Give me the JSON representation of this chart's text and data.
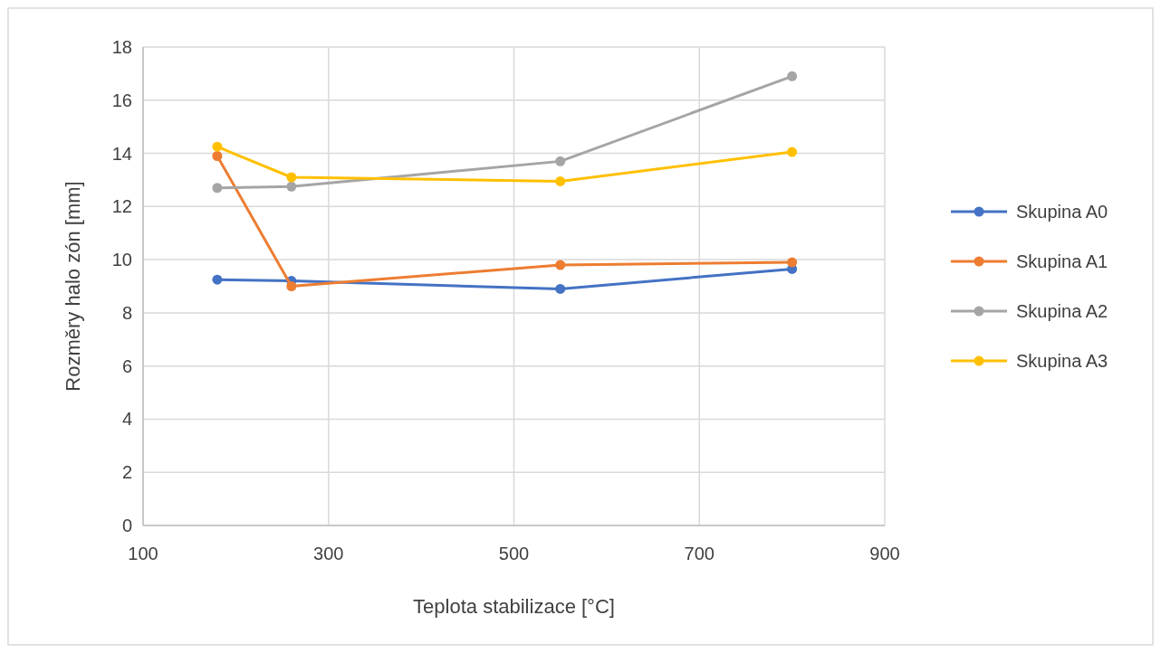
{
  "chart_data": {
    "type": "line",
    "xlabel": "Teplota stabilizace [°C]",
    "ylabel": "Rozměry halo zón [mm]",
    "x": [
      180,
      260,
      550,
      800
    ],
    "series": [
      {
        "name": "Skupina A0",
        "color": "#4472c4",
        "values": [
          9.25,
          9.2,
          8.9,
          9.65
        ]
      },
      {
        "name": "Skupina A1",
        "color": "#ed7d31",
        "values": [
          13.9,
          9.0,
          9.8,
          9.9
        ]
      },
      {
        "name": "Skupina A2",
        "color": "#a5a5a5",
        "values": [
          12.7,
          12.75,
          13.7,
          16.9
        ]
      },
      {
        "name": "Skupina A3",
        "color": "#ffc000",
        "values": [
          14.25,
          13.1,
          12.95,
          14.05
        ]
      }
    ],
    "xlim": [
      100,
      900
    ],
    "xticks": [
      100,
      300,
      500,
      700,
      900
    ],
    "ylim": [
      0,
      18
    ],
    "yticks": [
      0,
      2,
      4,
      6,
      8,
      10,
      12,
      14,
      16,
      18
    ],
    "grid": true,
    "legend": "right",
    "marker": "circle",
    "line_style": "solid"
  }
}
